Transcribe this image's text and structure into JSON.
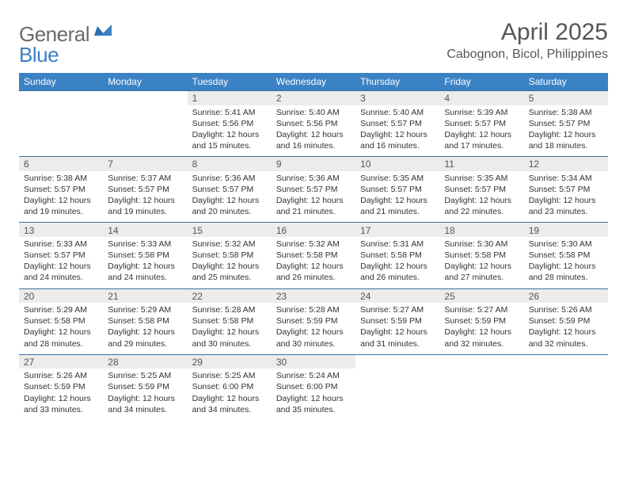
{
  "brand": {
    "general": "General",
    "blue": "Blue"
  },
  "title": "April 2025",
  "location": "Cabognon, Bicol, Philippines",
  "header_bg": "#3b82c4",
  "header_fg": "#ffffff",
  "daynum_bg": "#ececec",
  "rule_color": "#3b6fa0",
  "text_color": "#333333",
  "weekdays": [
    "Sunday",
    "Monday",
    "Tuesday",
    "Wednesday",
    "Thursday",
    "Friday",
    "Saturday"
  ],
  "weeks": [
    [
      null,
      null,
      {
        "n": "1",
        "sr": "Sunrise: 5:41 AM",
        "ss": "Sunset: 5:56 PM",
        "dl": "Daylight: 12 hours and 15 minutes."
      },
      {
        "n": "2",
        "sr": "Sunrise: 5:40 AM",
        "ss": "Sunset: 5:56 PM",
        "dl": "Daylight: 12 hours and 16 minutes."
      },
      {
        "n": "3",
        "sr": "Sunrise: 5:40 AM",
        "ss": "Sunset: 5:57 PM",
        "dl": "Daylight: 12 hours and 16 minutes."
      },
      {
        "n": "4",
        "sr": "Sunrise: 5:39 AM",
        "ss": "Sunset: 5:57 PM",
        "dl": "Daylight: 12 hours and 17 minutes."
      },
      {
        "n": "5",
        "sr": "Sunrise: 5:38 AM",
        "ss": "Sunset: 5:57 PM",
        "dl": "Daylight: 12 hours and 18 minutes."
      }
    ],
    [
      {
        "n": "6",
        "sr": "Sunrise: 5:38 AM",
        "ss": "Sunset: 5:57 PM",
        "dl": "Daylight: 12 hours and 19 minutes."
      },
      {
        "n": "7",
        "sr": "Sunrise: 5:37 AM",
        "ss": "Sunset: 5:57 PM",
        "dl": "Daylight: 12 hours and 19 minutes."
      },
      {
        "n": "8",
        "sr": "Sunrise: 5:36 AM",
        "ss": "Sunset: 5:57 PM",
        "dl": "Daylight: 12 hours and 20 minutes."
      },
      {
        "n": "9",
        "sr": "Sunrise: 5:36 AM",
        "ss": "Sunset: 5:57 PM",
        "dl": "Daylight: 12 hours and 21 minutes."
      },
      {
        "n": "10",
        "sr": "Sunrise: 5:35 AM",
        "ss": "Sunset: 5:57 PM",
        "dl": "Daylight: 12 hours and 21 minutes."
      },
      {
        "n": "11",
        "sr": "Sunrise: 5:35 AM",
        "ss": "Sunset: 5:57 PM",
        "dl": "Daylight: 12 hours and 22 minutes."
      },
      {
        "n": "12",
        "sr": "Sunrise: 5:34 AM",
        "ss": "Sunset: 5:57 PM",
        "dl": "Daylight: 12 hours and 23 minutes."
      }
    ],
    [
      {
        "n": "13",
        "sr": "Sunrise: 5:33 AM",
        "ss": "Sunset: 5:57 PM",
        "dl": "Daylight: 12 hours and 24 minutes."
      },
      {
        "n": "14",
        "sr": "Sunrise: 5:33 AM",
        "ss": "Sunset: 5:58 PM",
        "dl": "Daylight: 12 hours and 24 minutes."
      },
      {
        "n": "15",
        "sr": "Sunrise: 5:32 AM",
        "ss": "Sunset: 5:58 PM",
        "dl": "Daylight: 12 hours and 25 minutes."
      },
      {
        "n": "16",
        "sr": "Sunrise: 5:32 AM",
        "ss": "Sunset: 5:58 PM",
        "dl": "Daylight: 12 hours and 26 minutes."
      },
      {
        "n": "17",
        "sr": "Sunrise: 5:31 AM",
        "ss": "Sunset: 5:58 PM",
        "dl": "Daylight: 12 hours and 26 minutes."
      },
      {
        "n": "18",
        "sr": "Sunrise: 5:30 AM",
        "ss": "Sunset: 5:58 PM",
        "dl": "Daylight: 12 hours and 27 minutes."
      },
      {
        "n": "19",
        "sr": "Sunrise: 5:30 AM",
        "ss": "Sunset: 5:58 PM",
        "dl": "Daylight: 12 hours and 28 minutes."
      }
    ],
    [
      {
        "n": "20",
        "sr": "Sunrise: 5:29 AM",
        "ss": "Sunset: 5:58 PM",
        "dl": "Daylight: 12 hours and 28 minutes."
      },
      {
        "n": "21",
        "sr": "Sunrise: 5:29 AM",
        "ss": "Sunset: 5:58 PM",
        "dl": "Daylight: 12 hours and 29 minutes."
      },
      {
        "n": "22",
        "sr": "Sunrise: 5:28 AM",
        "ss": "Sunset: 5:58 PM",
        "dl": "Daylight: 12 hours and 30 minutes."
      },
      {
        "n": "23",
        "sr": "Sunrise: 5:28 AM",
        "ss": "Sunset: 5:59 PM",
        "dl": "Daylight: 12 hours and 30 minutes."
      },
      {
        "n": "24",
        "sr": "Sunrise: 5:27 AM",
        "ss": "Sunset: 5:59 PM",
        "dl": "Daylight: 12 hours and 31 minutes."
      },
      {
        "n": "25",
        "sr": "Sunrise: 5:27 AM",
        "ss": "Sunset: 5:59 PM",
        "dl": "Daylight: 12 hours and 32 minutes."
      },
      {
        "n": "26",
        "sr": "Sunrise: 5:26 AM",
        "ss": "Sunset: 5:59 PM",
        "dl": "Daylight: 12 hours and 32 minutes."
      }
    ],
    [
      {
        "n": "27",
        "sr": "Sunrise: 5:26 AM",
        "ss": "Sunset: 5:59 PM",
        "dl": "Daylight: 12 hours and 33 minutes."
      },
      {
        "n": "28",
        "sr": "Sunrise: 5:25 AM",
        "ss": "Sunset: 5:59 PM",
        "dl": "Daylight: 12 hours and 34 minutes."
      },
      {
        "n": "29",
        "sr": "Sunrise: 5:25 AM",
        "ss": "Sunset: 6:00 PM",
        "dl": "Daylight: 12 hours and 34 minutes."
      },
      {
        "n": "30",
        "sr": "Sunrise: 5:24 AM",
        "ss": "Sunset: 6:00 PM",
        "dl": "Daylight: 12 hours and 35 minutes."
      },
      null,
      null,
      null
    ]
  ]
}
